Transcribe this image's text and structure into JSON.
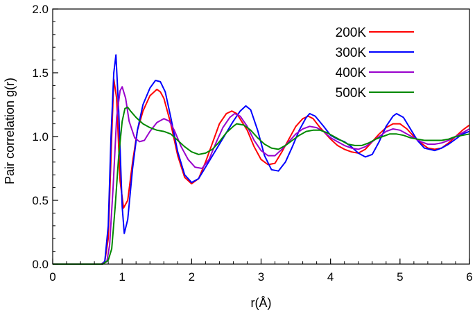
{
  "chart_data": {
    "type": "line",
    "title": "",
    "xlabel": "r(Å)",
    "ylabel": "Pair correlation g(r)",
    "xlim": [
      0,
      6
    ],
    "ylim": [
      0,
      2.0
    ],
    "x_ticks": [
      0,
      1,
      2,
      3,
      4,
      5,
      6
    ],
    "x_tick_labels": [
      "0",
      "1",
      "2",
      "3",
      "4",
      "5",
      "6"
    ],
    "y_ticks": [
      0,
      0.5,
      1.0,
      1.5,
      2.0
    ],
    "y_tick_labels": [
      "0.0",
      "0.5",
      "1.0",
      "1.5",
      "2.0"
    ],
    "grid": false,
    "legend_position": "top-right",
    "series": [
      {
        "name": "200K",
        "color": "#ff0000",
        "points": [
          [
            0,
            0
          ],
          [
            0.7,
            0
          ],
          [
            0.75,
            0.02
          ],
          [
            0.8,
            0.2
          ],
          [
            0.85,
            1.0
          ],
          [
            0.88,
            1.45
          ],
          [
            0.92,
            1.3
          ],
          [
            0.97,
            0.65
          ],
          [
            1.02,
            0.44
          ],
          [
            1.08,
            0.5
          ],
          [
            1.15,
            0.8
          ],
          [
            1.22,
            1.05
          ],
          [
            1.3,
            1.2
          ],
          [
            1.4,
            1.32
          ],
          [
            1.5,
            1.37
          ],
          [
            1.55,
            1.35
          ],
          [
            1.6,
            1.3
          ],
          [
            1.7,
            1.1
          ],
          [
            1.8,
            0.85
          ],
          [
            1.9,
            0.68
          ],
          [
            2.0,
            0.63
          ],
          [
            2.1,
            0.67
          ],
          [
            2.2,
            0.8
          ],
          [
            2.3,
            0.95
          ],
          [
            2.4,
            1.1
          ],
          [
            2.5,
            1.18
          ],
          [
            2.58,
            1.2
          ],
          [
            2.65,
            1.18
          ],
          [
            2.8,
            1.05
          ],
          [
            2.9,
            0.92
          ],
          [
            3.0,
            0.82
          ],
          [
            3.1,
            0.78
          ],
          [
            3.2,
            0.79
          ],
          [
            3.3,
            0.88
          ],
          [
            3.4,
            0.98
          ],
          [
            3.5,
            1.08
          ],
          [
            3.6,
            1.14
          ],
          [
            3.68,
            1.16
          ],
          [
            3.75,
            1.14
          ],
          [
            3.85,
            1.07
          ],
          [
            4.0,
            0.98
          ],
          [
            4.1,
            0.93
          ],
          [
            4.2,
            0.9
          ],
          [
            4.3,
            0.88
          ],
          [
            4.4,
            0.87
          ],
          [
            4.5,
            0.9
          ],
          [
            4.6,
            0.96
          ],
          [
            4.7,
            1.02
          ],
          [
            4.8,
            1.07
          ],
          [
            4.9,
            1.1
          ],
          [
            5.0,
            1.1
          ],
          [
            5.1,
            1.06
          ],
          [
            5.2,
            1.0
          ],
          [
            5.3,
            0.95
          ],
          [
            5.4,
            0.91
          ],
          [
            5.5,
            0.9
          ],
          [
            5.6,
            0.91
          ],
          [
            5.7,
            0.95
          ],
          [
            5.8,
            1.0
          ],
          [
            5.9,
            1.05
          ],
          [
            6.0,
            1.09
          ]
        ]
      },
      {
        "name": "300K",
        "color": "#0000ff",
        "points": [
          [
            0,
            0
          ],
          [
            0.7,
            0
          ],
          [
            0.75,
            0.02
          ],
          [
            0.8,
            0.3
          ],
          [
            0.84,
            1.0
          ],
          [
            0.88,
            1.5
          ],
          [
            0.91,
            1.64
          ],
          [
            0.95,
            1.2
          ],
          [
            1.0,
            0.45
          ],
          [
            1.03,
            0.24
          ],
          [
            1.08,
            0.35
          ],
          [
            1.15,
            0.75
          ],
          [
            1.22,
            1.05
          ],
          [
            1.3,
            1.25
          ],
          [
            1.4,
            1.38
          ],
          [
            1.48,
            1.44
          ],
          [
            1.55,
            1.43
          ],
          [
            1.62,
            1.35
          ],
          [
            1.7,
            1.15
          ],
          [
            1.8,
            0.88
          ],
          [
            1.9,
            0.7
          ],
          [
            2.0,
            0.64
          ],
          [
            2.1,
            0.67
          ],
          [
            2.2,
            0.76
          ],
          [
            2.3,
            0.85
          ],
          [
            2.4,
            0.94
          ],
          [
            2.5,
            1.03
          ],
          [
            2.6,
            1.12
          ],
          [
            2.7,
            1.2
          ],
          [
            2.78,
            1.24
          ],
          [
            2.85,
            1.21
          ],
          [
            2.95,
            1.05
          ],
          [
            3.05,
            0.85
          ],
          [
            3.15,
            0.74
          ],
          [
            3.25,
            0.73
          ],
          [
            3.35,
            0.8
          ],
          [
            3.45,
            0.92
          ],
          [
            3.55,
            1.05
          ],
          [
            3.65,
            1.15
          ],
          [
            3.7,
            1.18
          ],
          [
            3.78,
            1.16
          ],
          [
            3.9,
            1.08
          ],
          [
            4.0,
            1.01
          ],
          [
            4.1,
            0.98
          ],
          [
            4.2,
            0.96
          ],
          [
            4.3,
            0.92
          ],
          [
            4.4,
            0.87
          ],
          [
            4.5,
            0.84
          ],
          [
            4.6,
            0.86
          ],
          [
            4.7,
            0.96
          ],
          [
            4.8,
            1.08
          ],
          [
            4.9,
            1.16
          ],
          [
            4.95,
            1.18
          ],
          [
            5.05,
            1.15
          ],
          [
            5.15,
            1.06
          ],
          [
            5.25,
            0.97
          ],
          [
            5.35,
            0.91
          ],
          [
            5.5,
            0.89
          ],
          [
            5.6,
            0.91
          ],
          [
            5.7,
            0.94
          ],
          [
            5.8,
            0.98
          ],
          [
            5.9,
            1.02
          ],
          [
            6.0,
            1.04
          ]
        ]
      },
      {
        "name": "400K",
        "color": "#9900cc",
        "points": [
          [
            0,
            0
          ],
          [
            0.7,
            0
          ],
          [
            0.78,
            0.02
          ],
          [
            0.82,
            0.15
          ],
          [
            0.87,
            0.6
          ],
          [
            0.92,
            1.15
          ],
          [
            0.97,
            1.36
          ],
          [
            1.0,
            1.39
          ],
          [
            1.05,
            1.3
          ],
          [
            1.1,
            1.12
          ],
          [
            1.18,
            0.99
          ],
          [
            1.25,
            0.96
          ],
          [
            1.32,
            0.97
          ],
          [
            1.4,
            1.04
          ],
          [
            1.5,
            1.11
          ],
          [
            1.6,
            1.14
          ],
          [
            1.68,
            1.12
          ],
          [
            1.75,
            1.05
          ],
          [
            1.85,
            0.92
          ],
          [
            1.95,
            0.82
          ],
          [
            2.05,
            0.76
          ],
          [
            2.15,
            0.75
          ],
          [
            2.25,
            0.82
          ],
          [
            2.35,
            0.95
          ],
          [
            2.45,
            1.07
          ],
          [
            2.55,
            1.15
          ],
          [
            2.62,
            1.18
          ],
          [
            2.7,
            1.16
          ],
          [
            2.8,
            1.08
          ],
          [
            2.9,
            0.97
          ],
          [
            3.0,
            0.89
          ],
          [
            3.1,
            0.85
          ],
          [
            3.2,
            0.85
          ],
          [
            3.3,
            0.9
          ],
          [
            3.4,
            0.96
          ],
          [
            3.5,
            1.02
          ],
          [
            3.6,
            1.06
          ],
          [
            3.7,
            1.08
          ],
          [
            3.8,
            1.07
          ],
          [
            3.9,
            1.04
          ],
          [
            4.0,
            0.99
          ],
          [
            4.1,
            0.96
          ],
          [
            4.2,
            0.93
          ],
          [
            4.3,
            0.91
          ],
          [
            4.4,
            0.9
          ],
          [
            4.5,
            0.92
          ],
          [
            4.6,
            0.96
          ],
          [
            4.7,
            1.0
          ],
          [
            4.8,
            1.04
          ],
          [
            4.9,
            1.06
          ],
          [
            5.0,
            1.05
          ],
          [
            5.1,
            1.02
          ],
          [
            5.2,
            0.99
          ],
          [
            5.3,
            0.96
          ],
          [
            5.4,
            0.94
          ],
          [
            5.5,
            0.94
          ],
          [
            5.6,
            0.95
          ],
          [
            5.7,
            0.97
          ],
          [
            5.8,
            1.0
          ],
          [
            5.9,
            1.03
          ],
          [
            6.0,
            1.06
          ]
        ]
      },
      {
        "name": "500K",
        "color": "#008800",
        "points": [
          [
            0,
            0
          ],
          [
            0.72,
            0
          ],
          [
            0.8,
            0.03
          ],
          [
            0.85,
            0.12
          ],
          [
            0.9,
            0.45
          ],
          [
            0.95,
            0.85
          ],
          [
            1.0,
            1.12
          ],
          [
            1.04,
            1.22
          ],
          [
            1.08,
            1.23
          ],
          [
            1.12,
            1.2
          ],
          [
            1.2,
            1.15
          ],
          [
            1.3,
            1.1
          ],
          [
            1.4,
            1.07
          ],
          [
            1.5,
            1.05
          ],
          [
            1.6,
            1.04
          ],
          [
            1.7,
            1.02
          ],
          [
            1.8,
            0.97
          ],
          [
            1.9,
            0.92
          ],
          [
            2.0,
            0.88
          ],
          [
            2.1,
            0.86
          ],
          [
            2.2,
            0.87
          ],
          [
            2.3,
            0.9
          ],
          [
            2.4,
            0.96
          ],
          [
            2.5,
            1.03
          ],
          [
            2.6,
            1.08
          ],
          [
            2.65,
            1.1
          ],
          [
            2.75,
            1.09
          ],
          [
            2.85,
            1.05
          ],
          [
            2.95,
            0.99
          ],
          [
            3.05,
            0.94
          ],
          [
            3.15,
            0.91
          ],
          [
            3.25,
            0.9
          ],
          [
            3.35,
            0.93
          ],
          [
            3.45,
            0.97
          ],
          [
            3.55,
            1.01
          ],
          [
            3.65,
            1.04
          ],
          [
            3.75,
            1.05
          ],
          [
            3.85,
            1.05
          ],
          [
            3.95,
            1.03
          ],
          [
            4.05,
            1.0
          ],
          [
            4.15,
            0.97
          ],
          [
            4.25,
            0.94
          ],
          [
            4.35,
            0.93
          ],
          [
            4.45,
            0.93
          ],
          [
            4.55,
            0.95
          ],
          [
            4.65,
            0.98
          ],
          [
            4.75,
            1.0
          ],
          [
            4.85,
            1.02
          ],
          [
            4.95,
            1.02
          ],
          [
            5.05,
            1.01
          ],
          [
            5.15,
            0.99
          ],
          [
            5.25,
            0.98
          ],
          [
            5.35,
            0.97
          ],
          [
            5.5,
            0.97
          ],
          [
            5.6,
            0.97
          ],
          [
            5.7,
            0.98
          ],
          [
            5.8,
            1.0
          ],
          [
            5.9,
            1.01
          ],
          [
            6.0,
            1.02
          ]
        ]
      }
    ]
  }
}
